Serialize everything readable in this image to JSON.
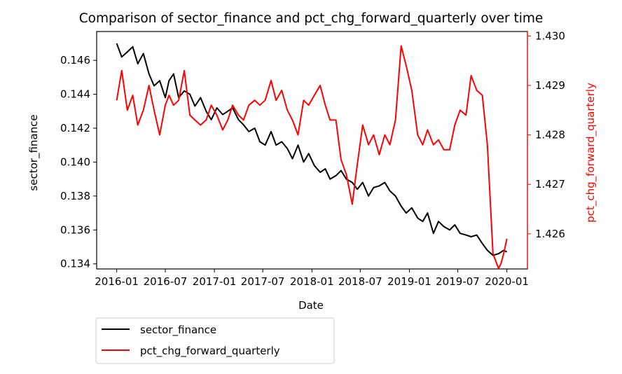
{
  "chart_data": {
    "type": "line",
    "title": "Comparison of sector_finance and pct_chg_forward_quarterly over time",
    "xlabel": "Date",
    "ylabel_left": "sector_finance",
    "ylabel_right": "pct_chg_forward_quarterly",
    "x_ticks": [
      "2016-01",
      "2016-07",
      "2017-01",
      "2017-07",
      "2018-01",
      "2018-07",
      "2019-01",
      "2019-07",
      "2020-01"
    ],
    "y_left_ticks": [
      "0.134",
      "0.136",
      "0.138",
      "0.140",
      "0.142",
      "0.144",
      "0.146"
    ],
    "y_right_ticks": [
      "1.426",
      "1.427",
      "1.428",
      "1.429",
      "1.430"
    ],
    "y_left_lim": [
      0.1337,
      0.1477
    ],
    "y_right_lim": [
      1.42529,
      1.43009
    ],
    "x_lim": [
      "2015-10-18",
      "2020-03-18"
    ],
    "grid": false,
    "legend_position": "below",
    "series": [
      {
        "name": "sector_finance",
        "axis": "left",
        "color": "#000000",
        "x": [
          "2016-01-01",
          "2016-01-20",
          "2016-02-10",
          "2016-03-01",
          "2016-03-20",
          "2016-04-10",
          "2016-05-01",
          "2016-05-20",
          "2016-06-10",
          "2016-07-01",
          "2016-07-15",
          "2016-08-01",
          "2016-08-20",
          "2016-09-10",
          "2016-10-01",
          "2016-10-20",
          "2016-11-10",
          "2016-12-01",
          "2016-12-20",
          "2017-01-10",
          "2017-02-01",
          "2017-02-20",
          "2017-03-10",
          "2017-04-01",
          "2017-04-20",
          "2017-05-10",
          "2017-06-01",
          "2017-06-20",
          "2017-07-10",
          "2017-08-01",
          "2017-08-20",
          "2017-09-10",
          "2017-10-01",
          "2017-10-20",
          "2017-11-10",
          "2017-12-01",
          "2017-12-20",
          "2018-01-10",
          "2018-02-01",
          "2018-02-20",
          "2018-03-10",
          "2018-04-01",
          "2018-04-20",
          "2018-05-10",
          "2018-06-01",
          "2018-06-20",
          "2018-07-10",
          "2018-08-01",
          "2018-08-20",
          "2018-09-10",
          "2018-10-01",
          "2018-10-20",
          "2018-11-10",
          "2018-12-01",
          "2018-12-20",
          "2019-01-10",
          "2019-02-01",
          "2019-02-20",
          "2019-03-10",
          "2019-04-01",
          "2019-04-20",
          "2019-05-10",
          "2019-06-01",
          "2019-06-20",
          "2019-07-10",
          "2019-08-01",
          "2019-08-20",
          "2019-09-10",
          "2019-10-01",
          "2019-10-20",
          "2019-11-10",
          "2019-12-01",
          "2019-12-20",
          "2020-01-01"
        ],
        "values": [
          0.147,
          0.1462,
          0.1465,
          0.1468,
          0.1458,
          0.1464,
          0.1452,
          0.1445,
          0.1448,
          0.1438,
          0.1448,
          0.1452,
          0.1438,
          0.1442,
          0.144,
          0.1433,
          0.1438,
          0.143,
          0.1425,
          0.1432,
          0.1428,
          0.143,
          0.1432,
          0.1425,
          0.1422,
          0.1418,
          0.142,
          0.1412,
          0.141,
          0.1418,
          0.141,
          0.1412,
          0.1408,
          0.1402,
          0.141,
          0.14,
          0.1405,
          0.1398,
          0.1394,
          0.1396,
          0.139,
          0.1392,
          0.1395,
          0.139,
          0.1388,
          0.1384,
          0.1388,
          0.138,
          0.1385,
          0.1386,
          0.1388,
          0.1383,
          0.138,
          0.1374,
          0.137,
          0.1373,
          0.1367,
          0.1365,
          0.137,
          0.1358,
          0.1365,
          0.1362,
          0.136,
          0.1363,
          0.1358,
          0.1357,
          0.1356,
          0.1357,
          0.1352,
          0.1348,
          0.1345,
          0.1346,
          0.1348,
          0.1347
        ]
      },
      {
        "name": "pct_chg_forward_quarterly",
        "axis": "right",
        "color": "#ff0000",
        "x": [
          "2016-01-01",
          "2016-01-20",
          "2016-02-10",
          "2016-03-01",
          "2016-03-20",
          "2016-04-10",
          "2016-05-01",
          "2016-05-20",
          "2016-06-10",
          "2016-07-01",
          "2016-07-15",
          "2016-08-01",
          "2016-08-20",
          "2016-09-10",
          "2016-10-01",
          "2016-10-20",
          "2016-11-10",
          "2016-12-01",
          "2016-12-20",
          "2017-01-10",
          "2017-02-01",
          "2017-02-20",
          "2017-03-10",
          "2017-04-01",
          "2017-04-20",
          "2017-05-10",
          "2017-06-01",
          "2017-06-20",
          "2017-07-10",
          "2017-08-01",
          "2017-08-20",
          "2017-09-10",
          "2017-10-01",
          "2017-10-20",
          "2017-11-10",
          "2017-12-01",
          "2017-12-20",
          "2018-01-10",
          "2018-02-01",
          "2018-02-20",
          "2018-03-10",
          "2018-04-01",
          "2018-04-20",
          "2018-05-10",
          "2018-06-01",
          "2018-06-20",
          "2018-07-10",
          "2018-08-01",
          "2018-08-20",
          "2018-09-10",
          "2018-10-01",
          "2018-10-20",
          "2018-11-10",
          "2018-12-01",
          "2018-12-20",
          "2019-01-10",
          "2019-02-01",
          "2019-02-20",
          "2019-03-10",
          "2019-04-01",
          "2019-04-20",
          "2019-05-10",
          "2019-06-01",
          "2019-06-20",
          "2019-07-10",
          "2019-08-01",
          "2019-08-20",
          "2019-09-10",
          "2019-10-01",
          "2019-10-20",
          "2019-11-10",
          "2019-12-01",
          "2019-12-10",
          "2019-12-20",
          "2020-01-01"
        ],
        "values": [
          1.4287,
          1.4293,
          1.4285,
          1.4288,
          1.4282,
          1.4285,
          1.429,
          1.4285,
          1.428,
          1.4286,
          1.4288,
          1.4286,
          1.4287,
          1.4293,
          1.4284,
          1.4283,
          1.4282,
          1.4283,
          1.4286,
          1.4284,
          1.4281,
          1.4283,
          1.4286,
          1.4284,
          1.4283,
          1.4286,
          1.4287,
          1.4286,
          1.4287,
          1.4291,
          1.4287,
          1.4289,
          1.4285,
          1.4283,
          1.428,
          1.4287,
          1.4286,
          1.4288,
          1.429,
          1.4286,
          1.4283,
          1.4283,
          1.4275,
          1.4272,
          1.4266,
          1.4274,
          1.4282,
          1.4278,
          1.428,
          1.4276,
          1.428,
          1.4278,
          1.4283,
          1.4298,
          1.4294,
          1.4289,
          1.428,
          1.4278,
          1.4281,
          1.4278,
          1.4279,
          1.4277,
          1.4277,
          1.4282,
          1.4285,
          1.4284,
          1.4292,
          1.4289,
          1.4288,
          1.4278,
          1.4256,
          1.4253,
          1.4254,
          1.4256,
          1.4259
        ]
      }
    ]
  }
}
